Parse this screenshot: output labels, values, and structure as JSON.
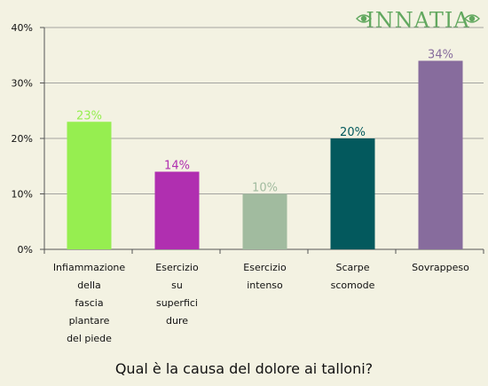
{
  "brand": {
    "logo_text": "INNATIA"
  },
  "chart_data": {
    "type": "bar",
    "title": "Qual è la causa del dolore ai talloni?",
    "xlabel": "",
    "ylabel": "",
    "ylim": [
      0,
      40
    ],
    "yticks": [
      "0%",
      "10%",
      "20%",
      "30%",
      "40%"
    ],
    "grid": true,
    "categories": [
      [
        "Infiammazione",
        "della",
        "fascia",
        "plantare",
        "del piede"
      ],
      [
        "Esercizio",
        "su",
        "superfici",
        "dure"
      ],
      [
        "Esercizio",
        "intenso"
      ],
      [
        "Scarpe",
        "scomode"
      ],
      [
        "Sovrappeso"
      ]
    ],
    "values": [
      23,
      14,
      10,
      20,
      34
    ],
    "data_labels": [
      "23%",
      "14%",
      "10%",
      "20%",
      "34%"
    ],
    "colors": [
      "#96ee50",
      "#b02fb0",
      "#a1bb9f",
      "#03595d",
      "#876c9d"
    ]
  }
}
